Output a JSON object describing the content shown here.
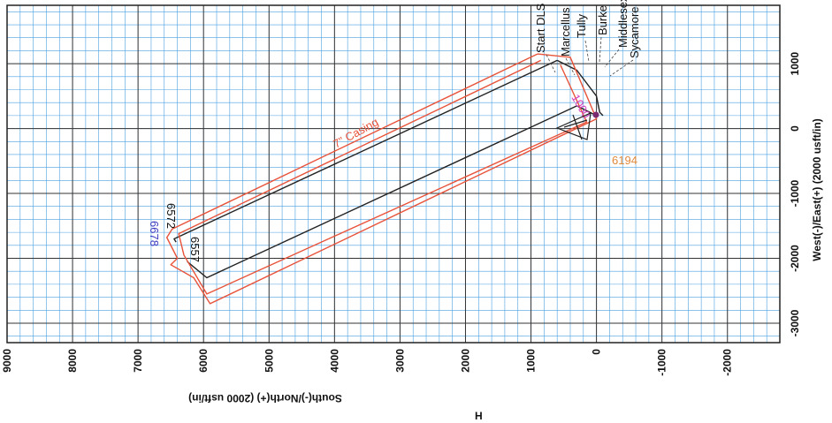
{
  "chart_data": {
    "type": "scatter",
    "xlabel": "South(-)/North(+) (2000 usft/in)",
    "ylabel": "West(-)/East(+) (2000 usft/in)",
    "x_ticks": [
      "9000",
      "8000",
      "7000",
      "6000",
      "5000",
      "4000",
      "3000",
      "2000",
      "1000",
      "0",
      "-1000",
      "-2000"
    ],
    "y_ticks": [
      "1000",
      "0",
      "-1000",
      "-2000",
      "-3000"
    ],
    "xlim": [
      9000,
      -2800
    ],
    "ylim": [
      1900,
      -3300
    ],
    "grid": true,
    "legend_labels": [
      "Start DLS",
      "Marcellus",
      "Tully",
      "Burke",
      "Middlesex",
      "Sycamore"
    ],
    "annotations": {
      "n6572": "6572",
      "n6678": "6678",
      "n6557": "6557",
      "n6194": "6194",
      "line_label": "7\" Casing",
      "magenta_label": "1000"
    },
    "bottom_mark": "H",
    "series": [
      {
        "color": "#222222",
        "points": [
          [
            600,
            1050
          ],
          [
            300,
            900
          ],
          [
            0,
            500
          ],
          [
            -50,
            250
          ],
          [
            -100,
            200
          ]
        ]
      },
      {
        "color": "#222222",
        "points": [
          [
            600,
            1050
          ],
          [
            6450,
            -1700
          ],
          [
            6420,
            -1750
          ]
        ]
      },
      {
        "color": "#222222",
        "points": [
          [
            0,
            200
          ],
          [
            300,
            350
          ],
          [
            5950,
            -2300
          ],
          [
            6250,
            -2050
          ]
        ]
      },
      {
        "color": "#e8533a",
        "points": [
          [
            900,
            1150
          ],
          [
            6480,
            -1550
          ],
          [
            6560,
            -1680
          ],
          [
            6400,
            -2000
          ],
          [
            6500,
            -2100
          ],
          [
            6150,
            -2300
          ],
          [
            5900,
            -2700
          ],
          [
            0,
            150
          ],
          [
            400,
            1100
          ],
          [
            900,
            1150
          ]
        ]
      },
      {
        "color": "#e8533a",
        "points": [
          [
            850,
            1050
          ],
          [
            6380,
            -1620
          ],
          [
            6300,
            -1950
          ],
          [
            5950,
            -2550
          ],
          [
            150,
            100
          ],
          [
            550,
            980
          ]
        ]
      }
    ]
  }
}
